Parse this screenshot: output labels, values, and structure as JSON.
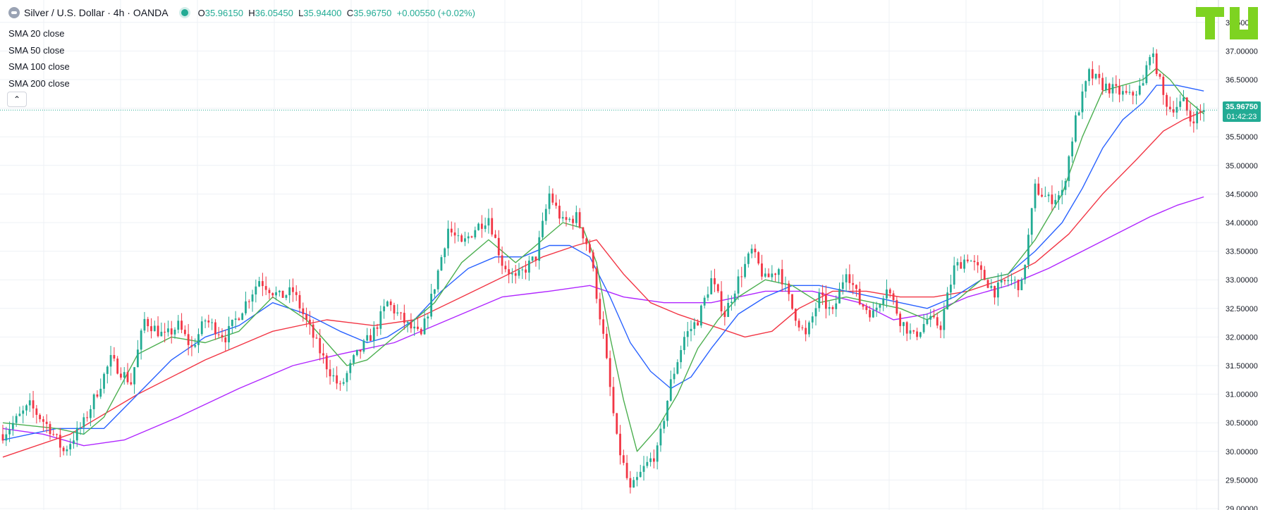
{
  "legend": {
    "symbol": "Silver / U.S. Dollar · 4h · OANDA",
    "ohlc": {
      "o_label": "O",
      "o": "35.96150",
      "h_label": "H",
      "h": "36.05450",
      "l_label": "L",
      "l": "35.94400",
      "c_label": "C",
      "c": "35.96750",
      "change": "+0.00550 (+0.02%)"
    }
  },
  "indicators": [
    "SMA 20 close",
    "SMA 50 close",
    "SMA 100 close",
    "SMA 200 close"
  ],
  "collapse_icon": "chevron-up-icon",
  "last_price": {
    "price": "35.96750",
    "countdown": "01:42:23"
  },
  "colors": {
    "up": "#22ab94",
    "down": "#f23645",
    "sma20": "#4caf50",
    "sma50": "#2962ff",
    "sma100": "#f23645",
    "sma200": "#b026ff",
    "logo": "#7ed321"
  },
  "chart_data": {
    "type": "candlestick",
    "yaxis": {
      "min": 29.0,
      "max": 37.5,
      "ticks": [
        "37.50000",
        "37.00000",
        "36.50000",
        "36.00000",
        "35.50000",
        "35.00000",
        "34.50000",
        "34.00000",
        "33.50000",
        "33.00000",
        "32.50000",
        "32.00000",
        "31.50000",
        "31.00000",
        "30.50000",
        "30.00000",
        "29.50000",
        "29.00000"
      ]
    },
    "grid": true,
    "close_path": [
      [
        0,
        30.3
      ],
      [
        8,
        30.8
      ],
      [
        14,
        30.4
      ],
      [
        18,
        30.0
      ],
      [
        24,
        30.5
      ],
      [
        32,
        31.6
      ],
      [
        38,
        31.2
      ],
      [
        42,
        32.3
      ],
      [
        48,
        32.0
      ],
      [
        52,
        32.2
      ],
      [
        56,
        31.8
      ],
      [
        60,
        32.3
      ],
      [
        66,
        32.0
      ],
      [
        70,
        32.4
      ],
      [
        76,
        33.0
      ],
      [
        82,
        32.7
      ],
      [
        86,
        32.8
      ],
      [
        92,
        32.0
      ],
      [
        96,
        31.5
      ],
      [
        100,
        31.1
      ],
      [
        104,
        31.6
      ],
      [
        110,
        32.1
      ],
      [
        114,
        32.6
      ],
      [
        120,
        32.2
      ],
      [
        124,
        32.0
      ],
      [
        128,
        32.9
      ],
      [
        132,
        33.9
      ],
      [
        136,
        33.6
      ],
      [
        140,
        33.9
      ],
      [
        144,
        34.1
      ],
      [
        148,
        33.3
      ],
      [
        152,
        33.0
      ],
      [
        158,
        33.4
      ],
      [
        162,
        34.5
      ],
      [
        166,
        34.0
      ],
      [
        170,
        34.1
      ],
      [
        174,
        33.5
      ],
      [
        178,
        32.0
      ],
      [
        182,
        30.2
      ],
      [
        186,
        29.3
      ],
      [
        190,
        29.7
      ],
      [
        194,
        30.0
      ],
      [
        198,
        31.2
      ],
      [
        202,
        32.0
      ],
      [
        206,
        32.3
      ],
      [
        210,
        33.0
      ],
      [
        214,
        32.4
      ],
      [
        218,
        33.0
      ],
      [
        222,
        33.5
      ],
      [
        226,
        33.0
      ],
      [
        230,
        33.2
      ],
      [
        234,
        32.5
      ],
      [
        238,
        32.0
      ],
      [
        242,
        32.7
      ],
      [
        246,
        32.4
      ],
      [
        250,
        33.2
      ],
      [
        254,
        32.6
      ],
      [
        258,
        32.4
      ],
      [
        262,
        32.9
      ],
      [
        266,
        32.3
      ],
      [
        270,
        32.0
      ],
      [
        274,
        32.3
      ],
      [
        278,
        32.2
      ],
      [
        282,
        33.2
      ],
      [
        286,
        33.4
      ],
      [
        290,
        33.1
      ],
      [
        294,
        32.8
      ],
      [
        298,
        33.0
      ],
      [
        302,
        32.9
      ],
      [
        306,
        34.6
      ],
      [
        310,
        34.4
      ],
      [
        314,
        34.5
      ],
      [
        318,
        35.8
      ],
      [
        322,
        36.6
      ],
      [
        326,
        36.4
      ],
      [
        330,
        36.3
      ],
      [
        334,
        36.2
      ],
      [
        338,
        36.4
      ],
      [
        340,
        37.0
      ],
      [
        342,
        36.7
      ],
      [
        344,
        36.2
      ],
      [
        346,
        36.0
      ],
      [
        350,
        36.1
      ],
      [
        352,
        35.8
      ],
      [
        356,
        35.97
      ]
    ],
    "sma20": [
      [
        0,
        30.5
      ],
      [
        16,
        30.4
      ],
      [
        24,
        30.3
      ],
      [
        30,
        30.6
      ],
      [
        40,
        31.7
      ],
      [
        50,
        32.0
      ],
      [
        60,
        31.9
      ],
      [
        70,
        32.1
      ],
      [
        80,
        32.7
      ],
      [
        90,
        32.3
      ],
      [
        96,
        31.9
      ],
      [
        102,
        31.5
      ],
      [
        108,
        31.6
      ],
      [
        114,
        31.9
      ],
      [
        120,
        32.2
      ],
      [
        128,
        32.6
      ],
      [
        136,
        33.3
      ],
      [
        144,
        33.7
      ],
      [
        152,
        33.3
      ],
      [
        160,
        33.7
      ],
      [
        166,
        34.0
      ],
      [
        172,
        33.9
      ],
      [
        176,
        33.3
      ],
      [
        180,
        32.0
      ],
      [
        184,
        30.9
      ],
      [
        188,
        30.0
      ],
      [
        194,
        30.4
      ],
      [
        200,
        31.0
      ],
      [
        206,
        31.8
      ],
      [
        212,
        32.3
      ],
      [
        218,
        32.7
      ],
      [
        226,
        33.0
      ],
      [
        234,
        32.9
      ],
      [
        242,
        32.6
      ],
      [
        250,
        32.7
      ],
      [
        258,
        32.6
      ],
      [
        266,
        32.5
      ],
      [
        274,
        32.3
      ],
      [
        282,
        32.6
      ],
      [
        290,
        33.0
      ],
      [
        298,
        33.1
      ],
      [
        306,
        33.7
      ],
      [
        314,
        34.5
      ],
      [
        320,
        35.5
      ],
      [
        326,
        36.3
      ],
      [
        332,
        36.4
      ],
      [
        338,
        36.5
      ],
      [
        342,
        36.7
      ],
      [
        346,
        36.5
      ],
      [
        350,
        36.2
      ],
      [
        356,
        35.9
      ]
    ],
    "sma50": [
      [
        0,
        30.2
      ],
      [
        16,
        30.4
      ],
      [
        30,
        30.4
      ],
      [
        40,
        31.0
      ],
      [
        50,
        31.6
      ],
      [
        60,
        32.0
      ],
      [
        70,
        32.2
      ],
      [
        80,
        32.6
      ],
      [
        90,
        32.4
      ],
      [
        100,
        32.1
      ],
      [
        108,
        31.9
      ],
      [
        114,
        32.0
      ],
      [
        122,
        32.3
      ],
      [
        130,
        32.8
      ],
      [
        138,
        33.2
      ],
      [
        146,
        33.4
      ],
      [
        154,
        33.4
      ],
      [
        162,
        33.6
      ],
      [
        168,
        33.6
      ],
      [
        174,
        33.4
      ],
      [
        180,
        32.7
      ],
      [
        186,
        31.9
      ],
      [
        192,
        31.4
      ],
      [
        198,
        31.1
      ],
      [
        204,
        31.3
      ],
      [
        210,
        31.8
      ],
      [
        218,
        32.4
      ],
      [
        226,
        32.7
      ],
      [
        234,
        32.9
      ],
      [
        242,
        32.9
      ],
      [
        250,
        32.8
      ],
      [
        258,
        32.7
      ],
      [
        266,
        32.6
      ],
      [
        274,
        32.5
      ],
      [
        282,
        32.7
      ],
      [
        290,
        33.0
      ],
      [
        298,
        33.1
      ],
      [
        306,
        33.5
      ],
      [
        314,
        34.0
      ],
      [
        320,
        34.6
      ],
      [
        326,
        35.3
      ],
      [
        332,
        35.8
      ],
      [
        338,
        36.1
      ],
      [
        342,
        36.4
      ],
      [
        348,
        36.4
      ],
      [
        356,
        36.3
      ]
    ],
    "sma100": [
      [
        0,
        29.9
      ],
      [
        20,
        30.3
      ],
      [
        40,
        31.0
      ],
      [
        60,
        31.6
      ],
      [
        80,
        32.1
      ],
      [
        96,
        32.3
      ],
      [
        110,
        32.2
      ],
      [
        122,
        32.3
      ],
      [
        136,
        32.7
      ],
      [
        150,
        33.1
      ],
      [
        160,
        33.4
      ],
      [
        170,
        33.6
      ],
      [
        176,
        33.7
      ],
      [
        184,
        33.1
      ],
      [
        192,
        32.6
      ],
      [
        200,
        32.4
      ],
      [
        210,
        32.2
      ],
      [
        220,
        32.0
      ],
      [
        228,
        32.1
      ],
      [
        236,
        32.5
      ],
      [
        246,
        32.8
      ],
      [
        256,
        32.8
      ],
      [
        266,
        32.7
      ],
      [
        276,
        32.7
      ],
      [
        286,
        32.8
      ],
      [
        296,
        33.0
      ],
      [
        306,
        33.3
      ],
      [
        316,
        33.8
      ],
      [
        326,
        34.5
      ],
      [
        336,
        35.1
      ],
      [
        344,
        35.6
      ],
      [
        350,
        35.8
      ],
      [
        356,
        35.95
      ]
    ],
    "sma200": [
      [
        0,
        30.4
      ],
      [
        12,
        30.3
      ],
      [
        24,
        30.1
      ],
      [
        36,
        30.2
      ],
      [
        52,
        30.6
      ],
      [
        70,
        31.1
      ],
      [
        86,
        31.5
      ],
      [
        100,
        31.7
      ],
      [
        116,
        31.9
      ],
      [
        132,
        32.3
      ],
      [
        148,
        32.7
      ],
      [
        162,
        32.8
      ],
      [
        174,
        32.9
      ],
      [
        184,
        32.7
      ],
      [
        196,
        32.6
      ],
      [
        210,
        32.6
      ],
      [
        226,
        32.8
      ],
      [
        240,
        32.8
      ],
      [
        254,
        32.6
      ],
      [
        264,
        32.3
      ],
      [
        274,
        32.4
      ],
      [
        286,
        32.7
      ],
      [
        298,
        32.9
      ],
      [
        310,
        33.2
      ],
      [
        320,
        33.5
      ],
      [
        330,
        33.8
      ],
      [
        340,
        34.1
      ],
      [
        348,
        34.3
      ],
      [
        356,
        34.45
      ]
    ],
    "last_close": 35.9675
  }
}
